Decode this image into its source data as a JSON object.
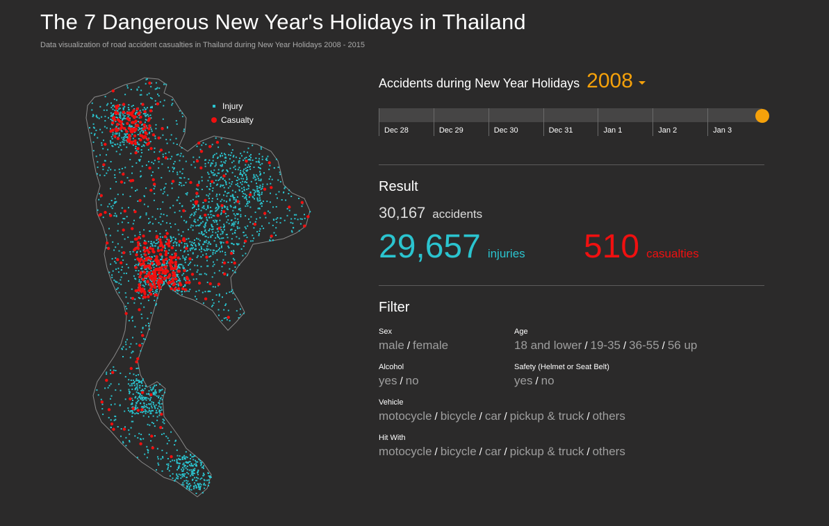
{
  "header": {
    "title": "The 7 Dangerous New Year's Holidays in Thailand",
    "subtitle": "Data visualization of road accident casualties in Thailand during New Year Holidays 2008 - 2015"
  },
  "legend": {
    "injury": "Injury",
    "casualty": "Casualty"
  },
  "colors": {
    "injury": "#2bc4cf",
    "casualty": "#f01010",
    "accent": "#f5a10a"
  },
  "timeline": {
    "heading": "Accidents during New Year Holidays",
    "year": "2008",
    "dates": [
      "Dec 28",
      "Dec 29",
      "Dec 30",
      "Dec 31",
      "Jan 1",
      "Jan 2",
      "Jan 3"
    ],
    "position_fraction": 1.0
  },
  "result": {
    "title": "Result",
    "accidents": "30,167",
    "accidents_label": "accidents",
    "injuries": "29,657",
    "injuries_label": "injuries",
    "casualties": "510",
    "casualties_label": "casualties"
  },
  "filter": {
    "title": "Filter",
    "sex": {
      "label": "Sex",
      "options": [
        "male",
        "female"
      ]
    },
    "age": {
      "label": "Age",
      "options": [
        "18 and lower",
        "19-35",
        "36-55",
        "56 up"
      ]
    },
    "alcohol": {
      "label": "Alcohol",
      "options": [
        "yes",
        "no"
      ]
    },
    "safety": {
      "label": "Safety (Helmet or Seat Belt)",
      "options": [
        "yes",
        "no"
      ]
    },
    "vehicle": {
      "label": "Vehicle",
      "options": [
        "motocycle",
        "bicycle",
        "car",
        "pickup & truck",
        "others"
      ]
    },
    "hit_with": {
      "label": "Hit With",
      "options": [
        "motocycle",
        "bicycle",
        "car",
        "pickup & truck",
        "others"
      ]
    }
  }
}
